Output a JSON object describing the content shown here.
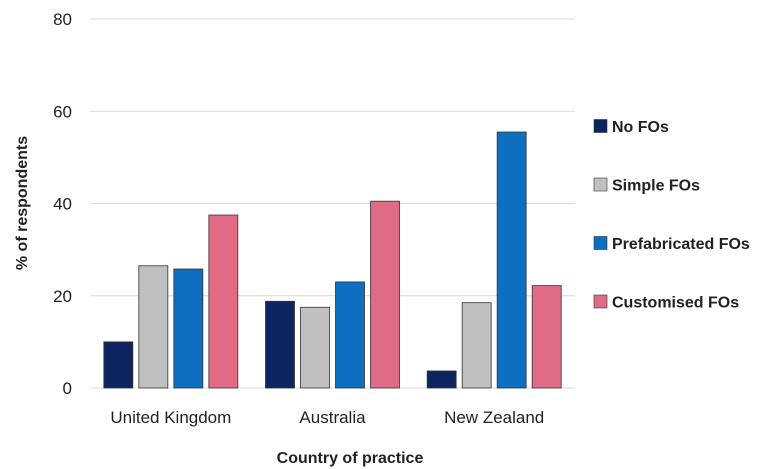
{
  "chart_data": {
    "type": "bar",
    "title": "",
    "xlabel": "Country of practice",
    "ylabel": "% of respondents",
    "ylim": [
      0,
      80
    ],
    "yticks": [
      0,
      20,
      40,
      60,
      80
    ],
    "grid": true,
    "legend_position": "right",
    "categories": [
      "United Kingdom",
      "Australia",
      "New Zealand"
    ],
    "series": [
      {
        "name": "No FOs",
        "color": "#0d2461",
        "values": [
          10,
          18.8,
          3.7
        ]
      },
      {
        "name": "Simple FOs",
        "color": "#c0c0c0",
        "values": [
          26.5,
          17.5,
          18.5
        ]
      },
      {
        "name": "Prefabricated FOs",
        "color": "#0e6fc1",
        "values": [
          25.8,
          23,
          55.5
        ]
      },
      {
        "name": "Customised FOs",
        "color": "#e06b86",
        "values": [
          37.5,
          40.5,
          22.2
        ]
      }
    ]
  }
}
